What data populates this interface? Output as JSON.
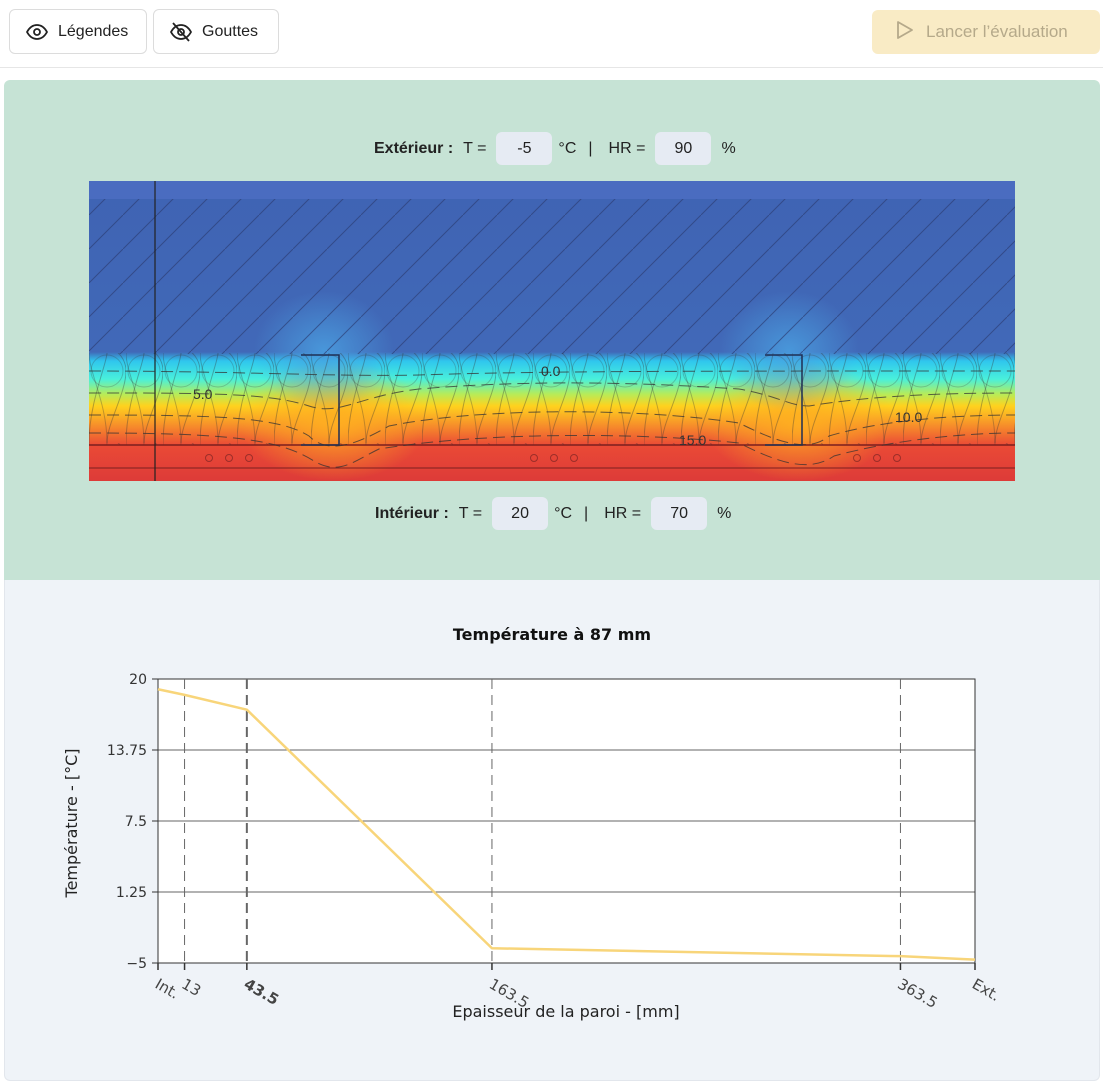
{
  "toolbar": {
    "legendes_label": "Légendes",
    "gouttes_label": "Gouttes",
    "lancer_label": "Lancer l’évaluation"
  },
  "exterieur": {
    "label": "Extérieur :",
    "t_label": "T =",
    "t_value": "-5",
    "t_unit": "°C",
    "separator": "|",
    "hr_label": "HR =",
    "hr_value": "90",
    "hr_unit": "%"
  },
  "interieur": {
    "label": "Intérieur :",
    "t_label": "T =",
    "t_value": "20",
    "t_unit": "°C",
    "separator": "|",
    "hr_label": "HR =",
    "hr_value": "70",
    "hr_unit": "%"
  },
  "thermal_map": {
    "isotherm_labels": [
      "0.0",
      "5.0",
      "10.0",
      "15.0"
    ]
  },
  "colors": {
    "line": "#f8d57a",
    "top_panel": "#c6e3d5",
    "bottom_panel": "#eff3f8",
    "accent_disabled": "#f9ebc5"
  },
  "chart_data": {
    "type": "line",
    "title": "Température à 87 mm",
    "xlabel": "Epaisseur de la paroi - [mm]",
    "ylabel": "Température - [°C]",
    "xlim": [
      0,
      400
    ],
    "ylim": [
      -5,
      20
    ],
    "yticks": [
      -5,
      1.25,
      7.5,
      13.75,
      20
    ],
    "ytick_labels": [
      "−5",
      "1.25",
      "7.5",
      "13.75",
      "20"
    ],
    "xticks": [
      0,
      13,
      43.5,
      163.5,
      363.5,
      400
    ],
    "xtick_labels": [
      "Int.",
      "13",
      "43.5",
      "163.5",
      "363.5",
      "Ext."
    ],
    "layer_boundaries": [
      13,
      43.5,
      163.5,
      363.5
    ],
    "series": [
      {
        "x": [
          0,
          13,
          43.5,
          163.5,
          363.5,
          400
        ],
        "y": [
          19.1,
          18.6,
          17.3,
          -3.7,
          -4.4,
          -4.7
        ]
      }
    ]
  }
}
